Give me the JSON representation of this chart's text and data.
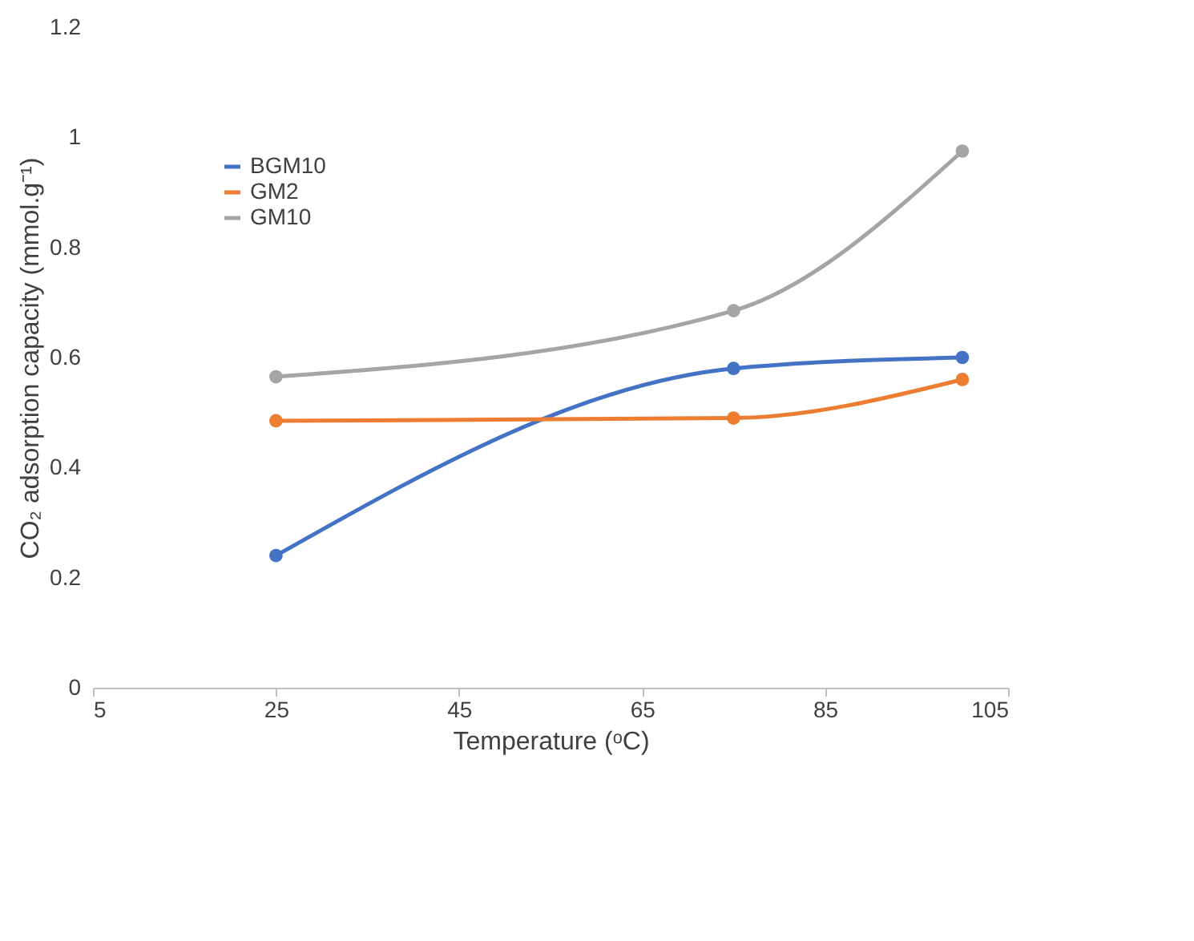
{
  "chart_data": {
    "type": "line",
    "xlabel": "Temperature (ᵒC)",
    "ylabel": "CO₂ adsorption capacity (mmol.g⁻¹)",
    "x": [
      25,
      75,
      100
    ],
    "series": [
      {
        "name": "BGM10",
        "color": "#4472c4",
        "values": [
          0.24,
          0.58,
          0.6
        ]
      },
      {
        "name": "GM2",
        "color": "#ed7d31",
        "values": [
          0.485,
          0.49,
          0.56
        ]
      },
      {
        "name": "GM10",
        "color": "#a5a5a5",
        "values": [
          0.565,
          0.685,
          0.975
        ]
      }
    ],
    "xlim": [
      5,
      105
    ],
    "xticks": [
      5,
      25,
      45,
      65,
      85,
      105
    ],
    "ylim": [
      0,
      1.2
    ],
    "yticks": [
      0,
      0.2,
      0.4,
      0.6,
      0.8,
      1,
      1.2
    ],
    "grid": false,
    "legend": "top left",
    "marker": "circle",
    "line_style": "solid"
  }
}
